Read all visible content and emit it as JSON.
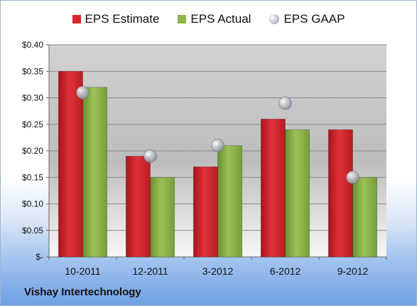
{
  "chart_data": {
    "type": "bar",
    "categories": [
      "10-2011",
      "12-2011",
      "3-2012",
      "6-2012",
      "9-2012"
    ],
    "series": [
      {
        "name": "EPS Estimate",
        "values": [
          0.35,
          0.19,
          0.17,
          0.26,
          0.24
        ],
        "color": "#d9262e",
        "kind": "bar"
      },
      {
        "name": "EPS Actual",
        "values": [
          0.32,
          0.15,
          0.21,
          0.24,
          0.15
        ],
        "color": "#8db449",
        "kind": "bar"
      },
      {
        "name": "EPS GAAP",
        "values": [
          0.31,
          0.19,
          0.21,
          0.29,
          0.15
        ],
        "color": "#b8bfc9",
        "kind": "scatter"
      }
    ],
    "y_ticks": [
      "$-",
      "$0.05",
      "$0.10",
      "$0.15",
      "$0.20",
      "$0.25",
      "$0.30",
      "$0.35",
      "$0.40"
    ],
    "ylim": [
      0,
      0.4
    ],
    "grid": true,
    "legend_position": "top-center"
  },
  "footer": {
    "company": "Vishay Intertechnology"
  }
}
